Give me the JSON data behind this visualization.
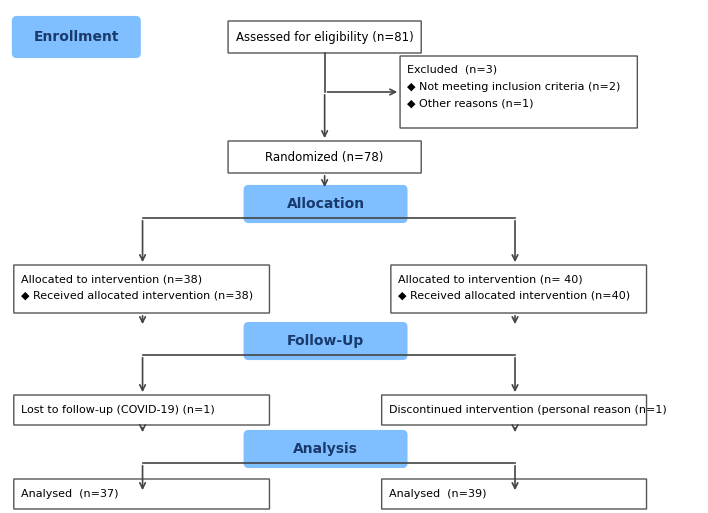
{
  "fig_width": 7.08,
  "fig_height": 5.13,
  "dpi": 100,
  "bg_color": "#ffffff",
  "box_color_blue": "#7fbfff",
  "box_border_color": "#555555",
  "text_color_blue": "#1a3a6b",
  "arrow_color": "#444444",
  "enrollment_label": "Enrollment",
  "eligibility_text": "Assessed for eligibility (n=81)",
  "excluded_title": "Excluded  (n=3)",
  "excluded_bullet1": "◆ Not meeting inclusion criteria (n=2)",
  "excluded_bullet2": "◆ Other reasons (n=1)",
  "randomized_text": "Randomized (n=78)",
  "allocation_label": "Allocation",
  "left_alloc_line1": "Allocated to intervention (n=38)",
  "left_alloc_line2": "◆ Received allocated intervention (n=38)",
  "right_alloc_line1": "Allocated to intervention (n= 40)",
  "right_alloc_line2": "◆ Received allocated intervention (n=40)",
  "followup_label": "Follow-Up",
  "left_followup": "Lost to follow-up (COVID-19) (n=1)",
  "right_followup": "Discontinued intervention (personal reason (n=1)",
  "analysis_label": "Analysis",
  "left_analysis": "Analysed  (n=37)",
  "right_analysis": "Analysed  (n=39)"
}
